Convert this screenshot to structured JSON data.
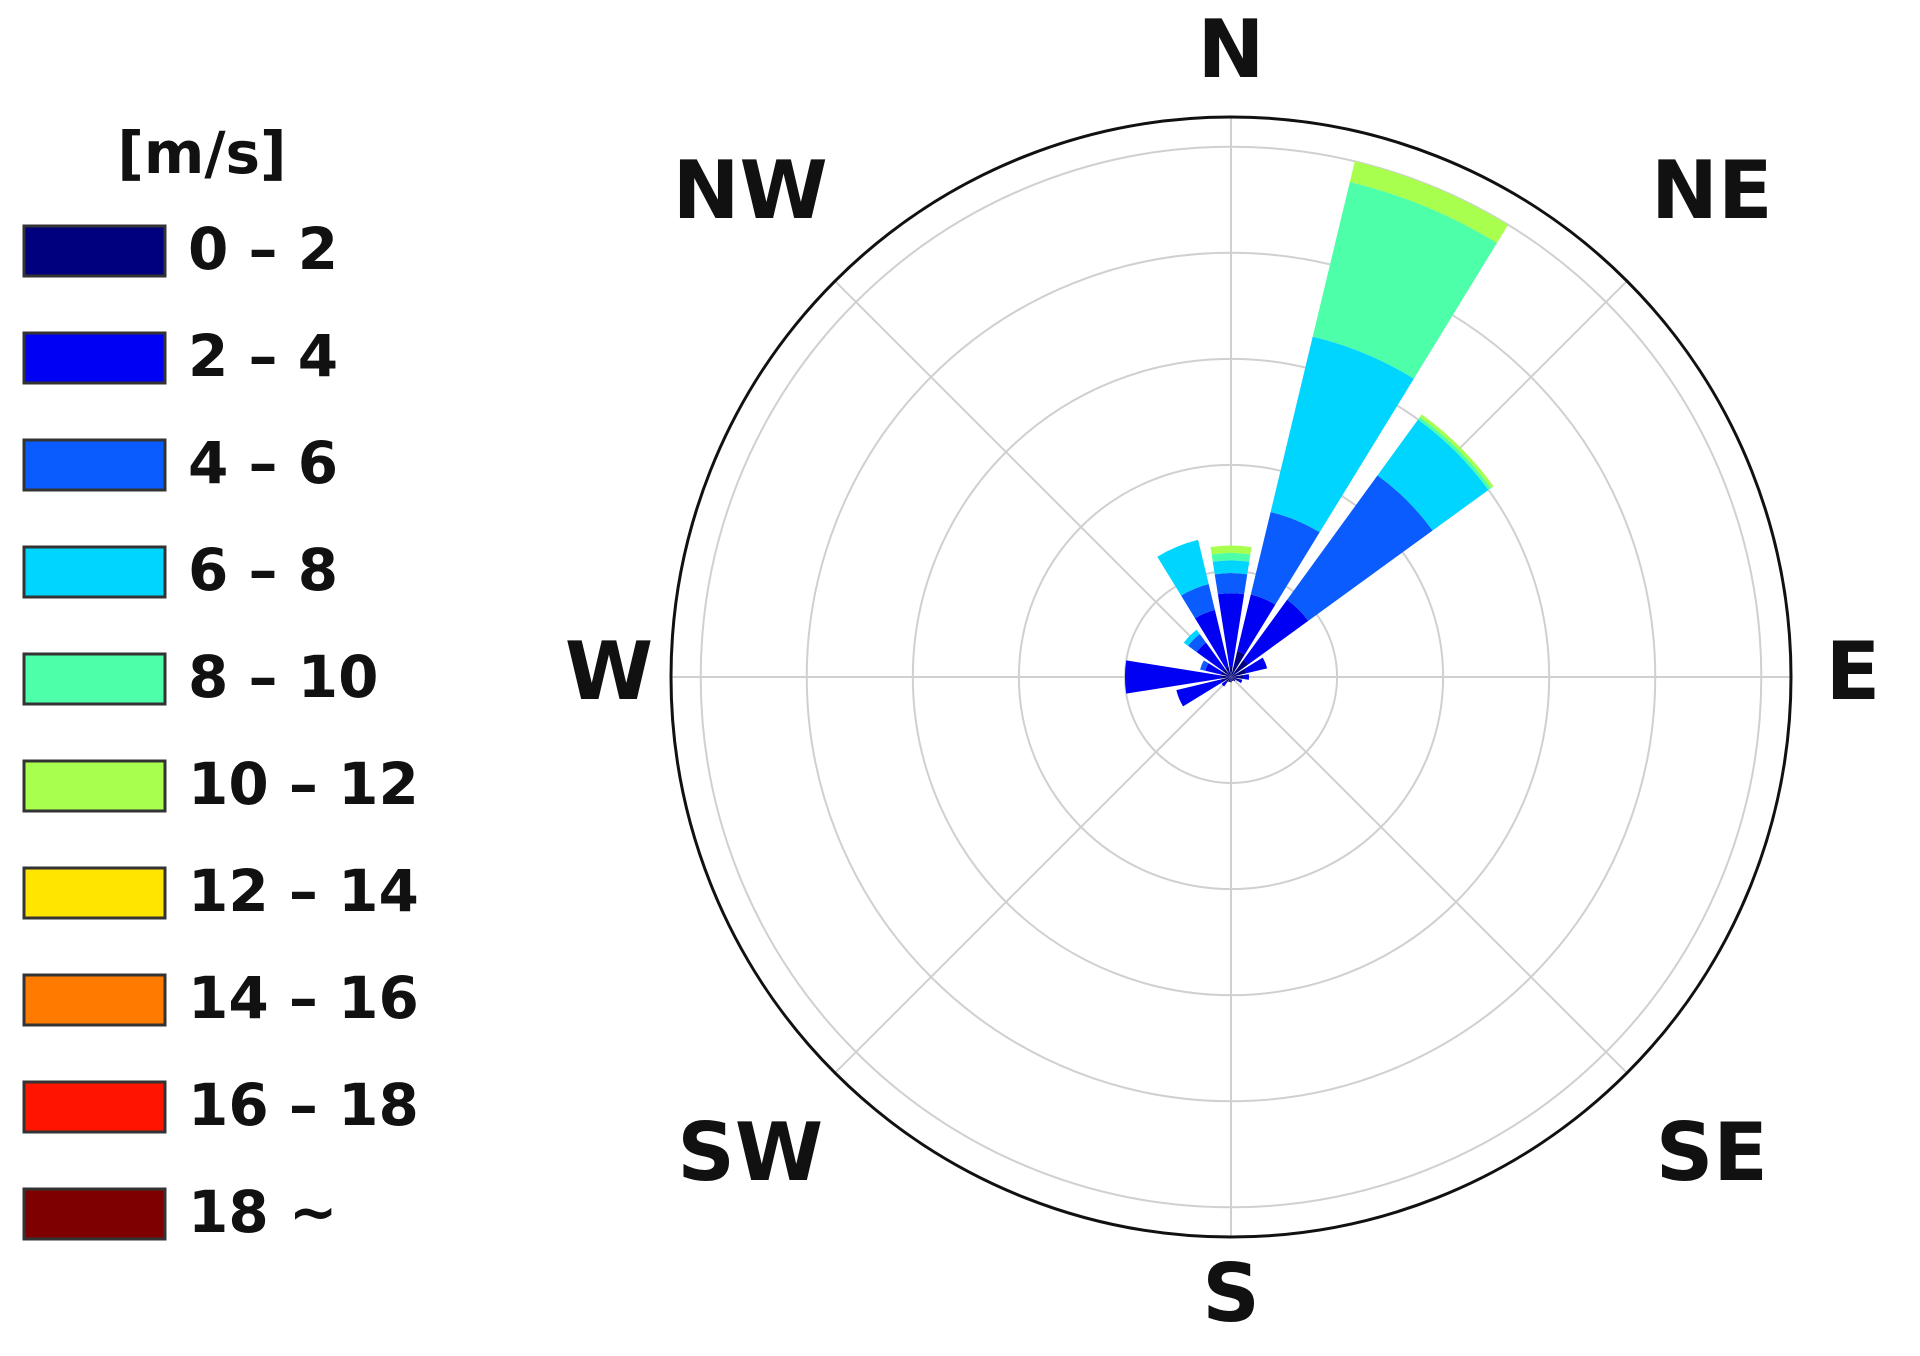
{
  "chart_data": {
    "type": "windrose",
    "legend_title": "[m/s]",
    "legend": "left",
    "grid": true,
    "rlim": [
      0,
      5.28
    ],
    "rticks": [
      1,
      2,
      3,
      4,
      5
    ],
    "categories": [
      "N",
      null,
      "NE",
      null,
      "E",
      null,
      "SE",
      null,
      "S",
      null,
      "SW",
      null,
      "W",
      null,
      "NW",
      null
    ],
    "series": [
      {
        "name": "0 – 2",
        "color": "#00007f",
        "values": [
          0.1,
          0.25,
          0.2,
          0.15,
          0.12,
          0.08,
          0.05,
          0.04,
          0.05,
          0.05,
          0.06,
          0.1,
          0.1,
          0.1,
          0.1,
          0.1
        ]
      },
      {
        "name": "2 – 4",
        "color": "#0000f2",
        "values": [
          0.69,
          0.55,
          0.7,
          0.2,
          0.05,
          0.03,
          0,
          0,
          0,
          0,
          0.05,
          0.43,
          0.9,
          0.15,
          0.3,
          0.55
        ]
      },
      {
        "name": "4 – 6",
        "color": "#0b5cff",
        "values": [
          0.19,
          0.8,
          1.45,
          0,
          0,
          0,
          0,
          0,
          0,
          0,
          0,
          0,
          0,
          0.05,
          0.1,
          0.25
        ]
      },
      {
        "name": "6 – 8",
        "color": "#00d5ff",
        "values": [
          0.12,
          1.7,
          0.65,
          0,
          0,
          0,
          0,
          0,
          0,
          0,
          0,
          0,
          0,
          0,
          0.05,
          0.43
        ]
      },
      {
        "name": "8 – 10",
        "color": "#4dffa9",
        "values": [
          0.07,
          1.5,
          0.03,
          0,
          0,
          0,
          0,
          0,
          0,
          0,
          0,
          0,
          0,
          0,
          0,
          0
        ]
      },
      {
        "name": "10 – 12",
        "color": "#a9ff4d",
        "values": [
          0.07,
          0.2,
          0.03,
          0,
          0,
          0,
          0,
          0,
          0,
          0,
          0,
          0,
          0,
          0,
          0,
          0
        ]
      },
      {
        "name": "12 – 14",
        "color": "#ffe500",
        "values": [
          0,
          0,
          0,
          0,
          0,
          0,
          0,
          0,
          0,
          0,
          0,
          0,
          0,
          0,
          0,
          0
        ]
      },
      {
        "name": "14 – 16",
        "color": "#ff7b00",
        "values": [
          0,
          0,
          0,
          0,
          0,
          0,
          0,
          0,
          0,
          0,
          0,
          0,
          0,
          0,
          0,
          0
        ]
      },
      {
        "name": "16 – 18",
        "color": "#ff1400",
        "values": [
          0,
          0,
          0,
          0,
          0,
          0,
          0,
          0,
          0,
          0,
          0,
          0,
          0,
          0,
          0,
          0
        ]
      },
      {
        "name": "18 ~",
        "color": "#7f0000",
        "values": [
          0,
          0,
          0,
          0,
          0,
          0,
          0,
          0,
          0,
          0,
          0,
          0,
          0,
          0,
          0,
          0
        ]
      }
    ]
  }
}
